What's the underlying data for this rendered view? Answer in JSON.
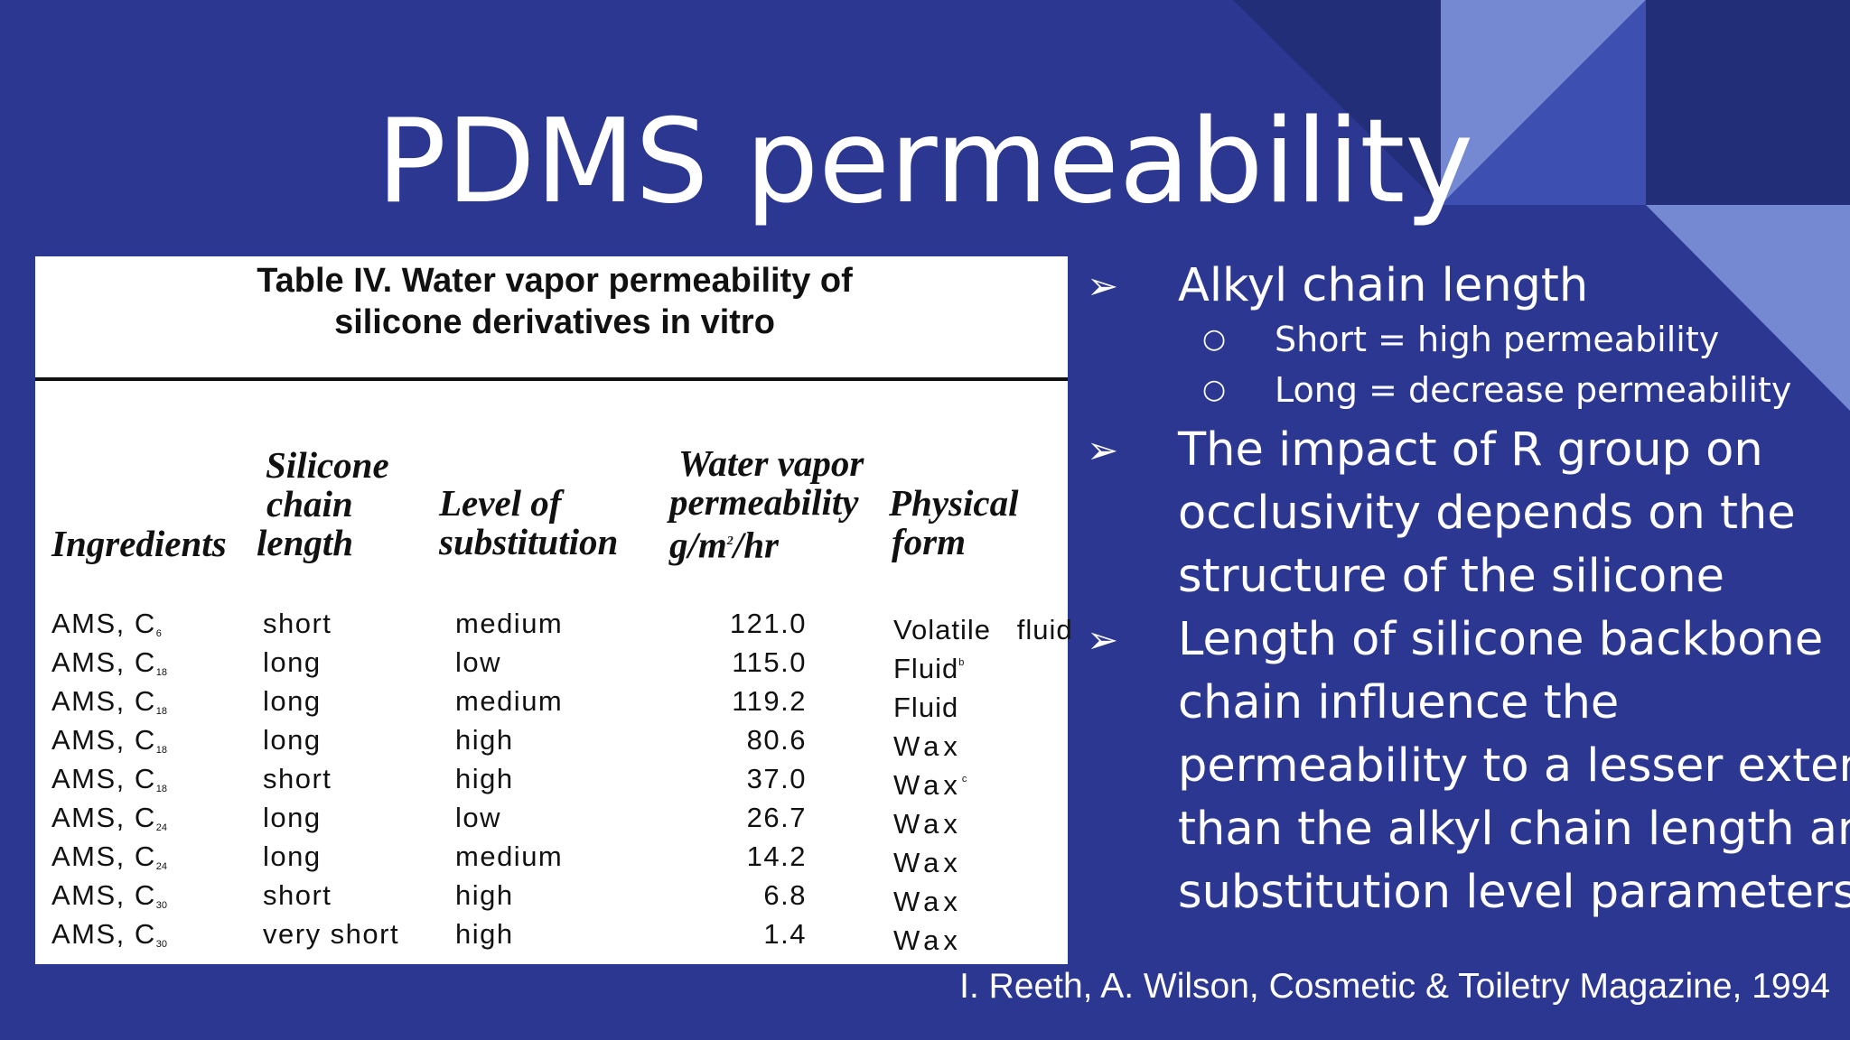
{
  "slide": {
    "title": "PDMS permeability",
    "colors": {
      "background": "#2b3790",
      "decor_dark": "#232e78",
      "decor_light": "#7589d2",
      "decor_mid": "#3d4fb0"
    }
  },
  "table": {
    "caption_line1": "Table IV. Water vapor permeability of",
    "caption_line2": "silicone derivatives in vitro",
    "headers": {
      "ingredients": "Ingredients",
      "chain_length": [
        "Silicone",
        "chain",
        "length"
      ],
      "substitution": [
        "Level of",
        "substitution"
      ],
      "permeability": [
        "Water  vapor",
        "permeability",
        "g/m",
        "2",
        "/hr"
      ],
      "physical_form": [
        "Physical",
        "form"
      ]
    },
    "rows": [
      {
        "ingredient": "AMS, C",
        "sub": "6",
        "chain": "short",
        "level": "medium",
        "perm": "121.0",
        "form": "Volatile   fluid",
        "form_sup": ""
      },
      {
        "ingredient": "AMS, C",
        "sub": "18",
        "chain": "long",
        "level": "low",
        "perm": "115.0",
        "form": "Fluid",
        "form_sup": "b"
      },
      {
        "ingredient": "AMS, C",
        "sub": "18",
        "chain": "long",
        "level": "medium",
        "perm": "119.2",
        "form": "Fluid",
        "form_sup": ""
      },
      {
        "ingredient": "AMS, C",
        "sub": "18",
        "chain": "long",
        "level": "high",
        "perm": "80.6",
        "form": "Wax",
        "form_sup": ""
      },
      {
        "ingredient": "AMS, C",
        "sub": "18",
        "chain": "short",
        "level": "high",
        "perm": "37.0",
        "form": "Wax",
        "form_sup": "c"
      },
      {
        "ingredient": "AMS, C",
        "sub": "24",
        "chain": "long",
        "level": "low",
        "perm": "26.7",
        "form": "Wax",
        "form_sup": ""
      },
      {
        "ingredient": "AMS, C",
        "sub": "24",
        "chain": "long",
        "level": "medium",
        "perm": "14.2",
        "form": "Wax",
        "form_sup": ""
      },
      {
        "ingredient": "AMS, C",
        "sub": "30",
        "chain": "short",
        "level": "high",
        "perm": "6.8",
        "form": "Wax",
        "form_sup": ""
      },
      {
        "ingredient": "AMS, C",
        "sub": "30",
        "chain": "very  short",
        "level": "high",
        "perm": "1.4",
        "form": "Wax",
        "form_sup": ""
      }
    ]
  },
  "bullets": {
    "arrow_glyph": "➢",
    "circle_glyph": "○",
    "item1": "Alkyl chain length",
    "item1_sub1": "Short = high permeability",
    "item1_sub2": "Long = decrease permeability",
    "item2_lines": [
      "The impact of R group on",
      "occlusivity depends on the",
      "structure of the silicone"
    ],
    "item3_lines": [
      "Length of silicone backbone",
      "chain influence the",
      "permeability to a lesser extend",
      "than the alkyl chain length and",
      "substitution level parameters"
    ]
  },
  "citation": "I. Reeth, A. Wilson, Cosmetic & Toiletry Magazine, 1994"
}
